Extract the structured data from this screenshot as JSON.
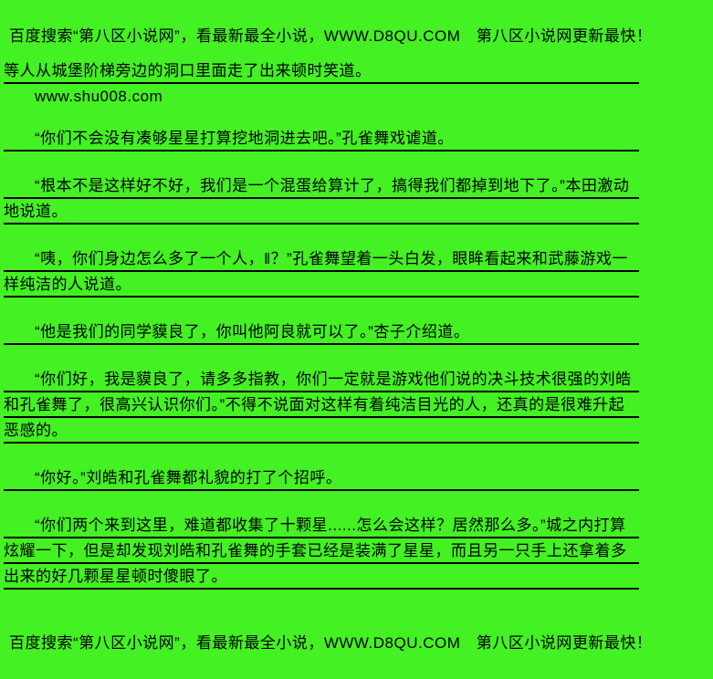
{
  "page": {
    "background_color": "#44F122",
    "text_color": "#000000",
    "underline_color": "#000000"
  },
  "header": {
    "text": "百度搜索“第八区小说网”，看最新最全小说，WWW.D8QU.COM　第八区小说网更新最快！"
  },
  "footer": {
    "text": "百度搜索“第八区小说网”，看最新最全小说，WWW.D8QU.COM　第八区小说网更新最快！"
  },
  "body": {
    "watermark": "www.shu008.com",
    "paragraphs": [
      {
        "text": "等人从城堡阶梯旁边的洞口里面走了出来顿时笑道。"
      },
      {
        "text": "“你们不会没有凑够星星打算挖地洞进去吧。”孔雀舞戏谑道。"
      },
      {
        "text": "“根本不是这样好不好，我们是一个混蛋给算计了，搞得我们都掉到地下了。”本田激动地说道。"
      },
      {
        "text": "“咦，你们身边怎么多了一个人，‖？”孔雀舞望着一头白发，眼眸看起来和武藤游戏一样纯洁的人说道。"
      },
      {
        "text": "“他是我们的同学貘良了，你叫他阿良就可以了。”杏子介绍道。"
      },
      {
        "text": "“你们好，我是貘良了，请多多指教，你们一定就是游戏他们说的决斗技术很强的刘皓和孔雀舞了，很高兴认识你们。”不得不说面对这样有着纯洁目光的人，还真的是很难升起恶感的。"
      },
      {
        "text": "“你好。”刘皓和孔雀舞都礼貌的打了个招呼。"
      },
      {
        "text": "“你们两个来到这里，难道都收集了十颗星......怎么会这样？居然那么多。”城之内打算炫耀一下，但是却发现刘皓和孔雀舞的手套已经是装满了星星，而且另一只手上还拿着多出来的好几颗星星顿时傻眼了。"
      }
    ]
  }
}
